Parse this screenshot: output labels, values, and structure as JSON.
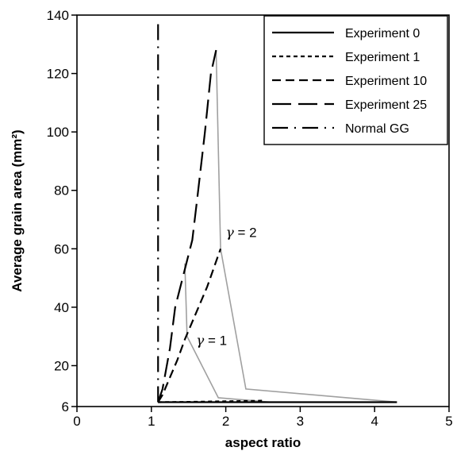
{
  "chart_data": {
    "type": "line",
    "xlabel": "aspect ratio",
    "ylabel": "Average grain area (mm²)",
    "xlim": [
      0,
      5
    ],
    "ylim": [
      6,
      140
    ],
    "x_ticks": [
      0,
      1,
      2,
      3,
      4,
      5
    ],
    "y_ticks": [
      6,
      20,
      40,
      60,
      80,
      100,
      120,
      140
    ],
    "grid": false,
    "legend_position": "top-right",
    "series": [
      {
        "name": "Experiment 0",
        "dash": "solid",
        "color": "#000000",
        "x": [
          1.09,
          2.6,
          4.3
        ],
        "y": [
          7.5,
          7.5,
          7.5
        ]
      },
      {
        "name": "Experiment 1",
        "dash": "dotted-short",
        "color": "#000000",
        "x": [
          1.09,
          1.5,
          2.0,
          2.5
        ],
        "y": [
          7.5,
          7.6,
          7.8,
          8.0
        ]
      },
      {
        "name": "Experiment 10",
        "dash": "dashed-medium",
        "color": "#000000",
        "x": [
          1.09,
          1.15,
          1.25,
          1.35,
          1.45,
          1.6,
          1.75,
          1.93
        ],
        "y": [
          7.5,
          10,
          16,
          22,
          29,
          38,
          47,
          60
        ]
      },
      {
        "name": "Experiment 25",
        "dash": "dashed-long",
        "color": "#000000",
        "x": [
          1.09,
          1.15,
          1.25,
          1.32,
          1.4,
          1.48,
          1.55,
          1.62,
          1.72,
          1.8,
          1.87
        ],
        "y": [
          7.5,
          12,
          26,
          40,
          48,
          56,
          63,
          78,
          100,
          120,
          128
        ]
      },
      {
        "name": "Normal GG",
        "dash": "dash-dot",
        "color": "#000000",
        "x": [
          1.09,
          1.09
        ],
        "y": [
          7.5,
          137
        ]
      }
    ],
    "reference_curves": [
      {
        "label_prefix": "γ",
        "label_suffix": "= 1",
        "color": "#a0a0a0",
        "x": [
          1.45,
          1.48,
          1.9,
          2.6
        ],
        "y": [
          55,
          30,
          9,
          7.5
        ],
        "label_at": [
          1.6,
          27
        ]
      },
      {
        "label_prefix": "γ",
        "label_suffix": "= 2",
        "color": "#a0a0a0",
        "x": [
          1.87,
          1.93,
          2.27,
          4.3
        ],
        "y": [
          128,
          60,
          12,
          7.5
        ],
        "label_at": [
          2.0,
          64
        ]
      }
    ]
  }
}
